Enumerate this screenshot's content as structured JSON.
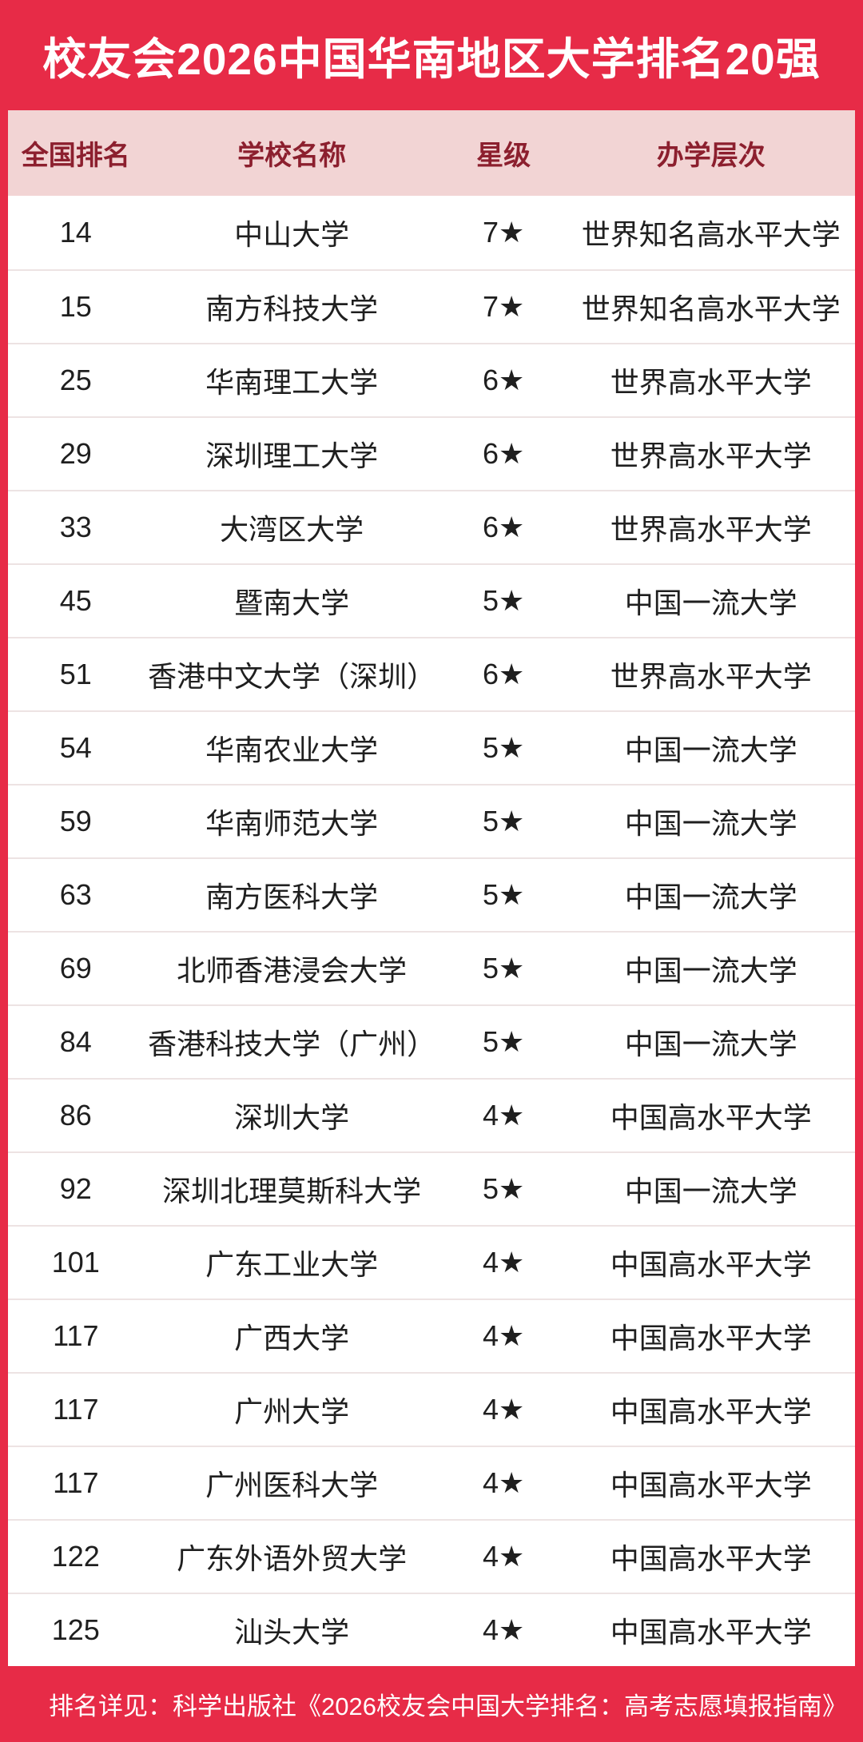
{
  "banner": {
    "title": "校友会2026中国华南地区大学排名20强",
    "bg_color": "#E72B47",
    "text_color": "#FFFFFF"
  },
  "table": {
    "header": {
      "rank": "全国排名",
      "name": "学校名称",
      "star": "星级",
      "tier": "办学层次"
    },
    "header_bg_color": "#F2D4D4",
    "header_text_color": "#8C1F2E",
    "row_separator_color": "#EDE3E3",
    "rows": [
      {
        "rank": "14",
        "name": "中山大学",
        "star": "7★",
        "tier": "世界知名高水平大学"
      },
      {
        "rank": "15",
        "name": "南方科技大学",
        "star": "7★",
        "tier": "世界知名高水平大学"
      },
      {
        "rank": "25",
        "name": "华南理工大学",
        "star": "6★",
        "tier": "世界高水平大学"
      },
      {
        "rank": "29",
        "name": "深圳理工大学",
        "star": "6★",
        "tier": "世界高水平大学"
      },
      {
        "rank": "33",
        "name": "大湾区大学",
        "star": "6★",
        "tier": "世界高水平大学"
      },
      {
        "rank": "45",
        "name": "暨南大学",
        "star": "5★",
        "tier": "中国一流大学"
      },
      {
        "rank": "51",
        "name": "香港中文大学（深圳）",
        "star": "6★",
        "tier": "世界高水平大学"
      },
      {
        "rank": "54",
        "name": "华南农业大学",
        "star": "5★",
        "tier": "中国一流大学"
      },
      {
        "rank": "59",
        "name": "华南师范大学",
        "star": "5★",
        "tier": "中国一流大学"
      },
      {
        "rank": "63",
        "name": "南方医科大学",
        "star": "5★",
        "tier": "中国一流大学"
      },
      {
        "rank": "69",
        "name": "北师香港浸会大学",
        "star": "5★",
        "tier": "中国一流大学"
      },
      {
        "rank": "84",
        "name": "香港科技大学（广州）",
        "star": "5★",
        "tier": "中国一流大学"
      },
      {
        "rank": "86",
        "name": "深圳大学",
        "star": "4★",
        "tier": "中国高水平大学"
      },
      {
        "rank": "92",
        "name": "深圳北理莫斯科大学",
        "star": "5★",
        "tier": "中国一流大学"
      },
      {
        "rank": "101",
        "name": "广东工业大学",
        "star": "4★",
        "tier": "中国高水平大学"
      },
      {
        "rank": "117",
        "name": "广西大学",
        "star": "4★",
        "tier": "中国高水平大学"
      },
      {
        "rank": "117",
        "name": "广州大学",
        "star": "4★",
        "tier": "中国高水平大学"
      },
      {
        "rank": "117",
        "name": "广州医科大学",
        "star": "4★",
        "tier": "中国高水平大学"
      },
      {
        "rank": "122",
        "name": "广东外语外贸大学",
        "star": "4★",
        "tier": "中国高水平大学"
      },
      {
        "rank": "125",
        "name": "汕头大学",
        "star": "4★",
        "tier": "中国高水平大学"
      }
    ]
  },
  "footer": {
    "note": "排名详见：科学出版社《2026校友会中国大学排名：高考志愿填报指南》",
    "bg_color": "#E72B47",
    "text_color": "#FFFFFF"
  }
}
